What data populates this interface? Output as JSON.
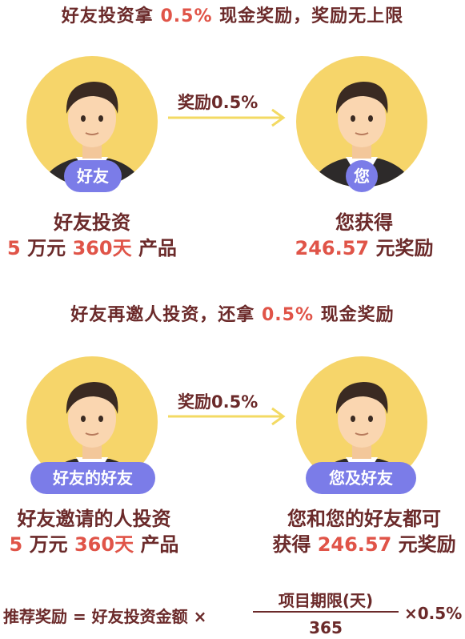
{
  "section1": {
    "title": {
      "a": "好友投资拿",
      "rate": "0.5%",
      "b": "现金奖励，奖励无上限"
    },
    "arrow_label": "奖励0.5%",
    "left_badge": "好友",
    "right_badge": "您",
    "left_line1": "好友投资",
    "left_line2": {
      "amount": "5",
      "unit": "万元",
      "days": "360天",
      "suffix": "产品"
    },
    "right_line1": "您获得",
    "right_line2": {
      "value": "246.57",
      "suffix": "元奖励"
    }
  },
  "section2": {
    "title": {
      "a": "好友再邀人投资，还拿",
      "rate": "0.5%",
      "b": "现金奖励"
    },
    "arrow_label": "奖励0.5%",
    "left_badge": "好友的好友",
    "right_badge": "您及好友",
    "left_line1": "好友邀请的人投资",
    "left_line2": {
      "amount": "5",
      "unit": "万元",
      "days": "360天",
      "suffix": "产品"
    },
    "right_line1": "您和您的好友都可",
    "right_line2": {
      "prefix": "获得",
      "value": "246.57",
      "suffix": "元奖励"
    }
  },
  "formula": {
    "left": "推荐奖励 = 好友投资金额 ×",
    "numerator": "项目期限(天)",
    "denominator": "365",
    "right": "×0.5%"
  },
  "colors": {
    "accent": "#e05448",
    "text": "#6b2a2a",
    "badge": "#7b7ce8",
    "avatar_bg": "#f6d56a",
    "arrow": "#f3da63"
  }
}
